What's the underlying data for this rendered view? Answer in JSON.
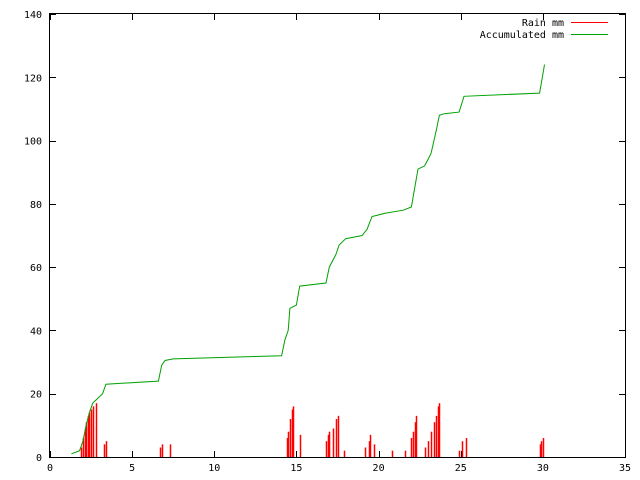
{
  "chart_data": {
    "type": "line",
    "title": "",
    "xlabel": "",
    "ylabel": "",
    "xlim": [
      0,
      35
    ],
    "ylim": [
      0,
      140
    ],
    "xticks": [
      0,
      5,
      10,
      15,
      20,
      25,
      30,
      35
    ],
    "yticks": [
      0,
      20,
      40,
      60,
      80,
      100,
      120,
      140
    ],
    "grid": false,
    "legend_position": "top-right",
    "series": [
      {
        "name": "Rain mm",
        "style": "impulses",
        "color": "#ff0000",
        "points": [
          [
            1.9,
            3
          ],
          [
            2.0,
            6
          ],
          [
            2.1,
            9
          ],
          [
            2.2,
            11
          ],
          [
            2.3,
            13
          ],
          [
            2.4,
            14
          ],
          [
            2.5,
            15
          ],
          [
            2.6,
            16
          ],
          [
            2.8,
            17
          ],
          [
            3.3,
            4
          ],
          [
            3.4,
            5
          ],
          [
            6.7,
            3
          ],
          [
            6.8,
            4
          ],
          [
            7.3,
            4
          ],
          [
            14.4,
            6
          ],
          [
            14.5,
            8
          ],
          [
            14.6,
            12
          ],
          [
            14.7,
            15
          ],
          [
            14.8,
            16
          ],
          [
            15.2,
            7
          ],
          [
            16.8,
            5
          ],
          [
            16.9,
            7
          ],
          [
            17.0,
            8
          ],
          [
            17.2,
            9
          ],
          [
            17.4,
            12
          ],
          [
            17.5,
            13
          ],
          [
            17.9,
            2
          ],
          [
            19.2,
            3
          ],
          [
            19.4,
            5
          ],
          [
            19.5,
            7
          ],
          [
            19.7,
            4
          ],
          [
            20.8,
            2
          ],
          [
            21.6,
            2
          ],
          [
            22.0,
            6
          ],
          [
            22.1,
            8
          ],
          [
            22.2,
            11
          ],
          [
            22.3,
            13
          ],
          [
            22.8,
            3
          ],
          [
            23.0,
            5
          ],
          [
            23.2,
            8
          ],
          [
            23.4,
            11
          ],
          [
            23.5,
            13
          ],
          [
            23.6,
            16
          ],
          [
            23.7,
            17
          ],
          [
            24.9,
            2
          ],
          [
            25.1,
            5
          ],
          [
            25.3,
            6
          ],
          [
            29.8,
            4
          ],
          [
            29.9,
            5
          ],
          [
            30.0,
            6
          ]
        ]
      },
      {
        "name": "Accumulated mm",
        "style": "line",
        "color": "#00a000",
        "points": [
          [
            1.3,
            1
          ],
          [
            1.8,
            2
          ],
          [
            2.0,
            5
          ],
          [
            2.2,
            10
          ],
          [
            2.4,
            14
          ],
          [
            2.6,
            17
          ],
          [
            2.8,
            18
          ],
          [
            3.2,
            20
          ],
          [
            3.4,
            23
          ],
          [
            6.6,
            24
          ],
          [
            6.8,
            29
          ],
          [
            7.0,
            30.5
          ],
          [
            7.5,
            31
          ],
          [
            14.1,
            32
          ],
          [
            14.3,
            37
          ],
          [
            14.5,
            40
          ],
          [
            14.6,
            47
          ],
          [
            15.0,
            48
          ],
          [
            15.2,
            54
          ],
          [
            16.8,
            55
          ],
          [
            17.0,
            60
          ],
          [
            17.4,
            64
          ],
          [
            17.6,
            67
          ],
          [
            18.0,
            69
          ],
          [
            19.0,
            70
          ],
          [
            19.3,
            72
          ],
          [
            19.6,
            76
          ],
          [
            20.4,
            77
          ],
          [
            21.5,
            78
          ],
          [
            22.0,
            79
          ],
          [
            22.2,
            85
          ],
          [
            22.4,
            91
          ],
          [
            22.8,
            92
          ],
          [
            23.0,
            94
          ],
          [
            23.2,
            96
          ],
          [
            23.5,
            103
          ],
          [
            23.7,
            108
          ],
          [
            24.0,
            108.5
          ],
          [
            24.9,
            109
          ],
          [
            25.2,
            114
          ],
          [
            29.8,
            115
          ],
          [
            30.0,
            121
          ],
          [
            30.1,
            124
          ]
        ]
      }
    ]
  }
}
